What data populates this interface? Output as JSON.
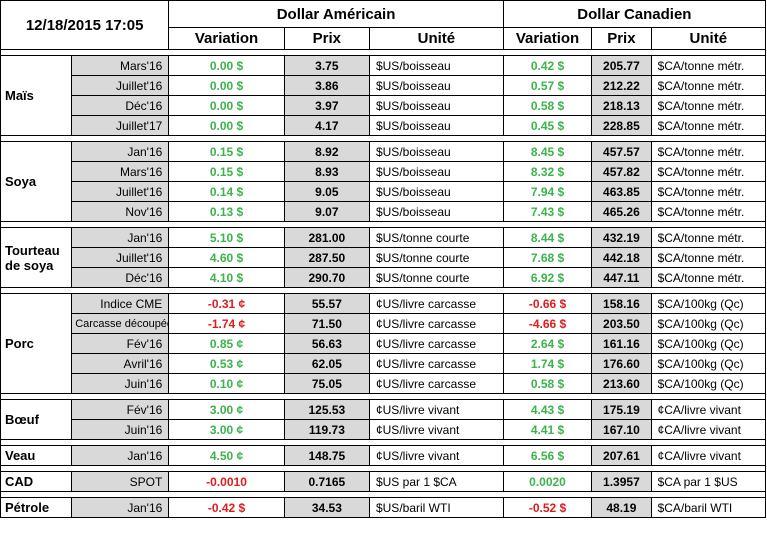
{
  "header": {
    "datetime": "12/18/2015 17:05",
    "usd_group": "Dollar Américain",
    "cad_group": "Dollar Canadien",
    "col_variation": "Variation",
    "col_prix": "Prix",
    "col_unite": "Unité"
  },
  "colors": {
    "positive": "#3cb44b",
    "negative": "#e01b1b",
    "shade": "#d9d9d9"
  },
  "groups": [
    {
      "label": "Maïs",
      "rows": [
        {
          "month": "Mars'16",
          "us_var": "0.00 $",
          "us_sign": "pos",
          "us_price": "3.75",
          "us_unit": "$US/boisseau",
          "ca_var": "0.42 $",
          "ca_sign": "pos",
          "ca_price": "205.77",
          "ca_unit": "$CA/tonne métr."
        },
        {
          "month": "Juillet'16",
          "us_var": "0.00 $",
          "us_sign": "pos",
          "us_price": "3.86",
          "us_unit": "$US/boisseau",
          "ca_var": "0.57 $",
          "ca_sign": "pos",
          "ca_price": "212.22",
          "ca_unit": "$CA/tonne métr."
        },
        {
          "month": "Déc'16",
          "us_var": "0.00 $",
          "us_sign": "pos",
          "us_price": "3.97",
          "us_unit": "$US/boisseau",
          "ca_var": "0.58 $",
          "ca_sign": "pos",
          "ca_price": "218.13",
          "ca_unit": "$CA/tonne métr."
        },
        {
          "month": "Juillet'17",
          "us_var": "0.00 $",
          "us_sign": "pos",
          "us_price": "4.17",
          "us_unit": "$US/boisseau",
          "ca_var": "0.45 $",
          "ca_sign": "pos",
          "ca_price": "228.85",
          "ca_unit": "$CA/tonne métr."
        }
      ]
    },
    {
      "label": "Soya",
      "rows": [
        {
          "month": "Jan'16",
          "us_var": "0.15 $",
          "us_sign": "pos",
          "us_price": "8.92",
          "us_unit": "$US/boisseau",
          "ca_var": "8.45 $",
          "ca_sign": "pos",
          "ca_price": "457.57",
          "ca_unit": "$CA/tonne métr."
        },
        {
          "month": "Mars'16",
          "us_var": "0.15 $",
          "us_sign": "pos",
          "us_price": "8.93",
          "us_unit": "$US/boisseau",
          "ca_var": "8.32 $",
          "ca_sign": "pos",
          "ca_price": "457.82",
          "ca_unit": "$CA/tonne métr."
        },
        {
          "month": "Juillet'16",
          "us_var": "0.14 $",
          "us_sign": "pos",
          "us_price": "9.05",
          "us_unit": "$US/boisseau",
          "ca_var": "7.94 $",
          "ca_sign": "pos",
          "ca_price": "463.85",
          "ca_unit": "$CA/tonne métr."
        },
        {
          "month": "Nov'16",
          "us_var": "0.13 $",
          "us_sign": "pos",
          "us_price": "9.07",
          "us_unit": "$US/boisseau",
          "ca_var": "7.43 $",
          "ca_sign": "pos",
          "ca_price": "465.26",
          "ca_unit": "$CA/tonne métr."
        }
      ]
    },
    {
      "label": "Tourteau de soya",
      "rows": [
        {
          "month": "Jan'16",
          "us_var": "5.10 $",
          "us_sign": "pos",
          "us_price": "281.00",
          "us_unit": "$US/tonne courte",
          "ca_var": "8.44 $",
          "ca_sign": "pos",
          "ca_price": "432.19",
          "ca_unit": "$CA/tonne métr."
        },
        {
          "month": "Juillet'16",
          "us_var": "4.60 $",
          "us_sign": "pos",
          "us_price": "287.50",
          "us_unit": "$US/tonne courte",
          "ca_var": "7.68 $",
          "ca_sign": "pos",
          "ca_price": "442.18",
          "ca_unit": "$CA/tonne métr."
        },
        {
          "month": "Déc'16",
          "us_var": "4.10 $",
          "us_sign": "pos",
          "us_price": "290.70",
          "us_unit": "$US/tonne courte",
          "ca_var": "6.92 $",
          "ca_sign": "pos",
          "ca_price": "447.11",
          "ca_unit": "$CA/tonne métr."
        }
      ]
    },
    {
      "label": "Porc",
      "rows": [
        {
          "month": "Indice CME",
          "us_var": "-0.31 ¢",
          "us_sign": "neg",
          "us_price": "55.57",
          "us_unit": "¢US/livre carcasse",
          "ca_var": "-0.66 $",
          "ca_sign": "neg",
          "ca_price": "158.16",
          "ca_unit": "$CA/100kg (Qc)"
        },
        {
          "month": "Carcasse découpée",
          "us_var": "-1.74 ¢",
          "us_sign": "neg",
          "us_price": "71.50",
          "us_unit": "¢US/livre carcasse",
          "ca_var": "-4.66 $",
          "ca_sign": "neg",
          "ca_price": "203.50",
          "ca_unit": "$CA/100kg (Qc)"
        },
        {
          "month": "Fév'16",
          "us_var": "0.85 ¢",
          "us_sign": "pos",
          "us_price": "56.63",
          "us_unit": "¢US/livre carcasse",
          "ca_var": "2.64 $",
          "ca_sign": "pos",
          "ca_price": "161.16",
          "ca_unit": "$CA/100kg (Qc)"
        },
        {
          "month": "Avril'16",
          "us_var": "0.53 ¢",
          "us_sign": "pos",
          "us_price": "62.05",
          "us_unit": "¢US/livre carcasse",
          "ca_var": "1.74 $",
          "ca_sign": "pos",
          "ca_price": "176.60",
          "ca_unit": "$CA/100kg (Qc)"
        },
        {
          "month": "Juin'16",
          "us_var": "0.10 ¢",
          "us_sign": "pos",
          "us_price": "75.05",
          "us_unit": "¢US/livre carcasse",
          "ca_var": "0.58 $",
          "ca_sign": "pos",
          "ca_price": "213.60",
          "ca_unit": "$CA/100kg (Qc)"
        }
      ]
    },
    {
      "label": "Bœuf",
      "rows": [
        {
          "month": "Fév'16",
          "us_var": "3.00 ¢",
          "us_sign": "pos",
          "us_price": "125.53",
          "us_unit": "¢US/livre vivant",
          "ca_var": "4.43 $",
          "ca_sign": "pos",
          "ca_price": "175.19",
          "ca_unit": "¢CA/livre vivant"
        },
        {
          "month": "Juin'16",
          "us_var": "3.00 ¢",
          "us_sign": "pos",
          "us_price": "119.73",
          "us_unit": "¢US/livre vivant",
          "ca_var": "4.41 $",
          "ca_sign": "pos",
          "ca_price": "167.10",
          "ca_unit": "¢CA/livre vivant"
        }
      ]
    },
    {
      "label": "Veau",
      "rows": [
        {
          "month": "Jan'16",
          "us_var": "4.50 ¢",
          "us_sign": "pos",
          "us_price": "148.75",
          "us_unit": "¢US/livre vivant",
          "ca_var": "6.56 $",
          "ca_sign": "pos",
          "ca_price": "207.61",
          "ca_unit": "¢CA/livre vivant"
        }
      ]
    },
    {
      "label": "CAD",
      "rows": [
        {
          "month": "SPOT",
          "us_var": "-0.0010",
          "us_sign": "neg",
          "us_price": "0.7165",
          "us_unit": "$US par 1 $CA",
          "ca_var": "0.0020",
          "ca_sign": "pos",
          "ca_price": "1.3957",
          "ca_unit": "$CA par 1 $US"
        }
      ]
    },
    {
      "label": "Pétrole",
      "rows": [
        {
          "month": "Jan'16",
          "us_var": "-0.42 $",
          "us_sign": "neg",
          "us_price": "34.53",
          "us_unit": "$US/baril WTI",
          "ca_var": "-0.52 $",
          "ca_sign": "neg",
          "ca_price": "48.19",
          "ca_unit": "$CA/baril WTI"
        }
      ]
    }
  ]
}
